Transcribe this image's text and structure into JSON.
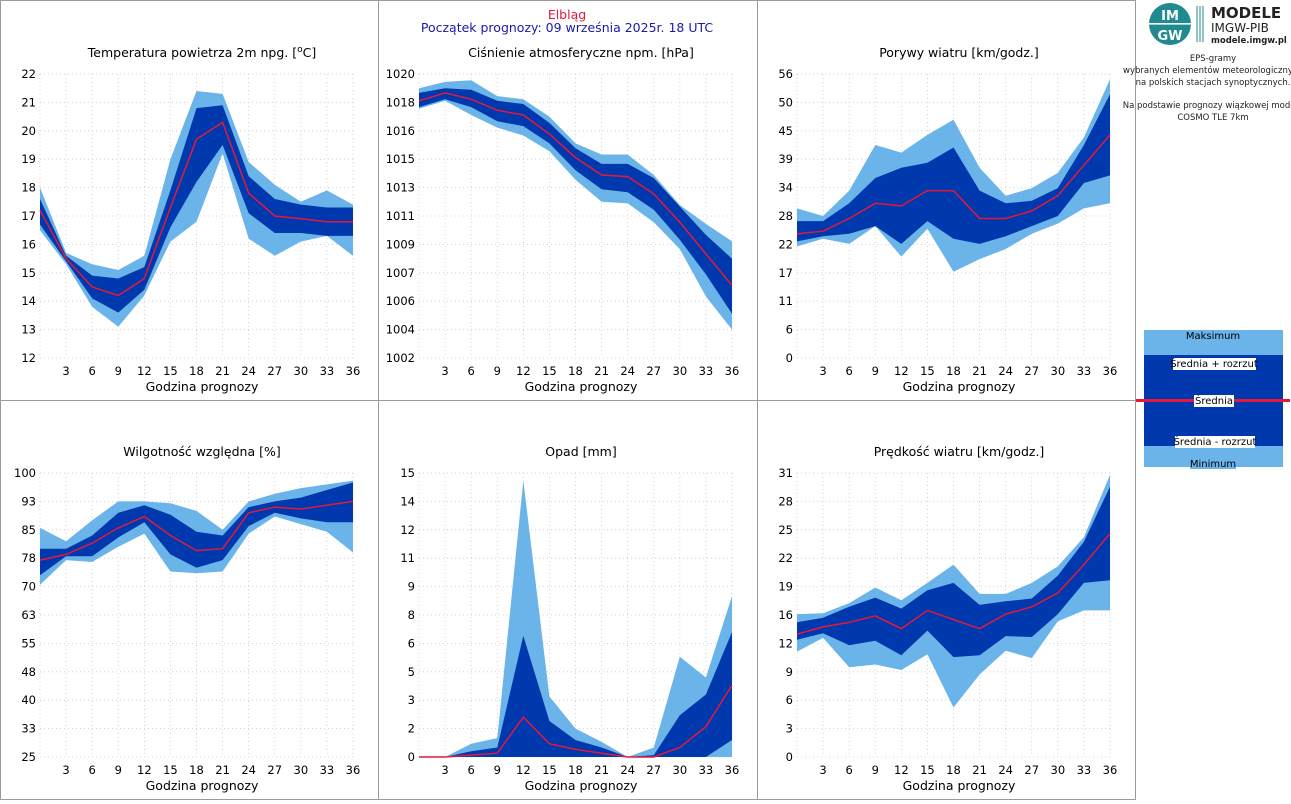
{
  "header": {
    "station": "Elbląg",
    "forecast_start": "Początek prognozy: 09 września 2025r. 18 UTC"
  },
  "logo": {
    "mark_top": "IM",
    "mark_bottom": "GW",
    "line1": "MODELE",
    "line2": "IMGW-PIB",
    "line3": "modele.imgw.pl"
  },
  "side_text": [
    "EPS-gramy",
    "wybranych elementów meteorologicznych",
    "na polskich stacjach  synoptycznych.",
    "",
    "Na podstawie prognozy wiązkowej modelu",
    "COSMO TLE 7km"
  ],
  "legend": {
    "max": "Maksimum",
    "mean_plus": "Średnia + rozrzut",
    "mean": "Średnia",
    "mean_minus": "Średnia - rozrzut",
    "min": "Minimum"
  },
  "colors": {
    "outer_band": "#6bb4ea",
    "inner_band": "#0039ad",
    "mean_line": "#e3183c",
    "grid": "#c8c8c8",
    "title_station": "#e3183c",
    "title_start": "#1a1aaa"
  },
  "chart_data": [
    {
      "id": "temperature",
      "type": "area",
      "title_main": "Temperatura powietrza 2m npg. [",
      "title_sup": "o",
      "title_end": "C]",
      "xlabel": "Godzina prognozy",
      "x": [
        0,
        3,
        6,
        9,
        12,
        15,
        18,
        21,
        24,
        27,
        30,
        33,
        36
      ],
      "xlim": [
        0,
        36
      ],
      "xticks": [
        "3",
        "6",
        "9",
        "12",
        "15",
        "18",
        "21",
        "24",
        "27",
        "30",
        "33",
        "36"
      ],
      "ylim": [
        12,
        22
      ],
      "yticks": [
        "12",
        "13",
        "14",
        "15",
        "16",
        "17",
        "18",
        "19",
        "20",
        "21",
        "22"
      ],
      "max": [
        18.0,
        15.7,
        15.3,
        15.1,
        15.6,
        19.0,
        21.4,
        21.3,
        18.9,
        18.1,
        17.5,
        17.9,
        17.4
      ],
      "mean_plus": [
        17.6,
        15.6,
        14.9,
        14.8,
        15.2,
        17.9,
        20.8,
        20.9,
        18.4,
        17.6,
        17.4,
        17.3,
        17.3
      ],
      "mean": [
        17.2,
        15.5,
        14.5,
        14.2,
        14.8,
        17.3,
        19.7,
        20.3,
        17.8,
        17.0,
        16.9,
        16.8,
        16.8
      ],
      "mean_minus": [
        16.7,
        15.4,
        14.1,
        13.6,
        14.4,
        16.6,
        18.2,
        19.5,
        17.1,
        16.4,
        16.4,
        16.3,
        16.3
      ],
      "min": [
        16.5,
        15.3,
        13.8,
        13.1,
        14.2,
        16.1,
        16.8,
        19.2,
        16.2,
        15.6,
        16.1,
        16.3,
        15.6
      ]
    },
    {
      "id": "pressure",
      "type": "area",
      "title_main": "Ciśnienie atmosferyczne npm. [hPa]",
      "xlabel": "Godzina prognozy",
      "x": [
        0,
        3,
        6,
        9,
        12,
        15,
        18,
        21,
        24,
        27,
        30,
        33,
        36
      ],
      "xlim": [
        0,
        36
      ],
      "xticks": [
        "3",
        "6",
        "9",
        "12",
        "15",
        "18",
        "21",
        "24",
        "27",
        "30",
        "33",
        "36"
      ],
      "ylim": [
        1002,
        1020
      ],
      "yticks": [
        "1002",
        "1004",
        "1006",
        "1007",
        "1009",
        "1011",
        "1013",
        "1015",
        "1016",
        "1018",
        "1020"
      ],
      "max": [
        1019.1,
        1019.5,
        1019.6,
        1018.6,
        1018.4,
        1017.3,
        1015.6,
        1014.9,
        1014.9,
        1013.6,
        1011.7,
        1010.5,
        1009.4
      ],
      "mean_plus": [
        1018.8,
        1019.1,
        1019.0,
        1018.3,
        1018.1,
        1016.9,
        1015.3,
        1014.3,
        1014.3,
        1013.4,
        1011.6,
        1009.8,
        1008.3
      ],
      "mean": [
        1018.3,
        1018.8,
        1018.4,
        1017.7,
        1017.4,
        1016.2,
        1014.7,
        1013.6,
        1013.5,
        1012.4,
        1010.6,
        1008.6,
        1006.6
      ],
      "mean_minus": [
        1017.9,
        1018.4,
        1017.9,
        1017.0,
        1016.7,
        1015.6,
        1013.9,
        1012.7,
        1012.5,
        1011.4,
        1009.5,
        1007.3,
        1004.8
      ],
      "min": [
        1017.8,
        1018.3,
        1017.4,
        1016.6,
        1016.1,
        1015.1,
        1013.3,
        1011.9,
        1011.8,
        1010.6,
        1008.9,
        1005.9,
        1003.8
      ]
    },
    {
      "id": "gusts",
      "type": "area",
      "title_main": "Porywy wiatru [km/godz.]",
      "xlabel": "Godzina prognozy",
      "x": [
        0,
        3,
        6,
        9,
        12,
        15,
        18,
        21,
        24,
        27,
        30,
        33,
        36
      ],
      "xlim": [
        0,
        36
      ],
      "xticks": [
        "3",
        "6",
        "9",
        "12",
        "15",
        "18",
        "21",
        "24",
        "27",
        "30",
        "33",
        "36"
      ],
      "ylim": [
        0,
        56
      ],
      "yticks": [
        "0",
        "6",
        "11",
        "17",
        "22",
        "28",
        "34",
        "39",
        "45",
        "50",
        "56"
      ],
      "max": [
        29.5,
        28.0,
        33.0,
        42.0,
        40.5,
        44.0,
        47.0,
        37.5,
        32.0,
        33.5,
        36.5,
        43.5,
        55.0
      ],
      "mean_plus": [
        27.0,
        27.0,
        30.5,
        35.5,
        37.5,
        38.5,
        41.5,
        33.0,
        30.5,
        31.0,
        33.5,
        42.0,
        52.0
      ],
      "mean": [
        24.5,
        25.0,
        27.5,
        30.5,
        30.0,
        33.0,
        33.0,
        27.5,
        27.5,
        29.0,
        32.0,
        38.0,
        44.0
      ],
      "mean_minus": [
        23.0,
        24.0,
        24.5,
        26.0,
        22.5,
        27.0,
        23.5,
        22.5,
        24.0,
        26.0,
        28.0,
        34.5,
        36.0
      ],
      "min": [
        22.0,
        23.5,
        22.5,
        26.0,
        20.0,
        25.5,
        17.0,
        19.5,
        21.5,
        24.5,
        26.5,
        29.5,
        30.5
      ]
    },
    {
      "id": "humidity",
      "type": "area",
      "title_main": "Wilgotność względna [%]",
      "xlabel": "Godzina prognozy",
      "x": [
        0,
        3,
        6,
        9,
        12,
        15,
        18,
        21,
        24,
        27,
        30,
        33,
        36
      ],
      "xlim": [
        0,
        36
      ],
      "xticks": [
        "3",
        "6",
        "9",
        "12",
        "15",
        "18",
        "21",
        "24",
        "27",
        "30",
        "33",
        "36"
      ],
      "ylim": [
        25,
        100
      ],
      "yticks": [
        "25",
        "33",
        "40",
        "48",
        "55",
        "63",
        "70",
        "78",
        "85",
        "93",
        "100"
      ],
      "max": [
        85.5,
        82.0,
        87.5,
        92.5,
        92.5,
        92.0,
        90.0,
        85.0,
        92.5,
        94.5,
        96.0,
        97.0,
        98.0
      ],
      "mean_plus": [
        80.0,
        80.0,
        83.5,
        89.5,
        91.5,
        89.0,
        84.5,
        83.5,
        91.0,
        92.5,
        93.5,
        95.5,
        97.5
      ],
      "mean": [
        77.0,
        78.5,
        81.5,
        85.5,
        88.5,
        83.5,
        79.5,
        80.0,
        89.5,
        91.0,
        90.5,
        91.5,
        92.5
      ],
      "mean_minus": [
        73.0,
        78.0,
        78.0,
        83.0,
        87.0,
        78.5,
        75.0,
        77.0,
        86.0,
        89.5,
        88.0,
        87.0,
        87.0
      ],
      "min": [
        70.5,
        77.0,
        76.5,
        80.5,
        84.0,
        74.0,
        73.5,
        74.0,
        84.0,
        88.5,
        86.5,
        84.5,
        79.0
      ]
    },
    {
      "id": "precipitation",
      "type": "area",
      "title_main": "Opad [mm]",
      "xlabel": "Godzina prognozy",
      "x": [
        0,
        3,
        6,
        9,
        12,
        15,
        18,
        21,
        24,
        27,
        30,
        33,
        36
      ],
      "xlim": [
        0,
        36
      ],
      "xticks": [
        "3",
        "6",
        "9",
        "12",
        "15",
        "18",
        "21",
        "24",
        "27",
        "30",
        "33",
        "36"
      ],
      "ylim": [
        0,
        15
      ],
      "yticks": [
        "0",
        "2",
        "3",
        "5",
        "6",
        "8",
        "9",
        "11",
        "12",
        "14",
        "15"
      ],
      "max": [
        0.0,
        0.0,
        0.7,
        1.0,
        14.6,
        3.2,
        1.5,
        0.8,
        0.0,
        0.5,
        5.3,
        4.2,
        8.5
      ],
      "mean_plus": [
        0.0,
        0.0,
        0.3,
        0.5,
        6.4,
        1.9,
        0.9,
        0.5,
        0.0,
        0.1,
        2.2,
        3.3,
        6.6
      ],
      "mean": [
        0.0,
        0.0,
        0.1,
        0.2,
        2.1,
        0.7,
        0.4,
        0.2,
        0.0,
        0.0,
        0.5,
        1.6,
        3.8
      ],
      "mean_minus": [
        0.0,
        0.0,
        0.0,
        0.0,
        0.0,
        0.0,
        0.0,
        0.0,
        0.0,
        0.0,
        0.0,
        0.0,
        0.9
      ],
      "min": [
        0.0,
        0.0,
        0.0,
        0.0,
        0.0,
        0.0,
        0.0,
        0.0,
        0.0,
        0.0,
        0.0,
        0.0,
        0.0
      ]
    },
    {
      "id": "wind_speed",
      "type": "area",
      "title_main": "Prędkość wiatru [km/godz.]",
      "xlabel": "Godzina prognozy",
      "x": [
        0,
        3,
        6,
        9,
        12,
        15,
        18,
        21,
        24,
        27,
        30,
        33,
        36
      ],
      "xlim": [
        0,
        36
      ],
      "xticks": [
        "3",
        "6",
        "9",
        "12",
        "15",
        "18",
        "21",
        "24",
        "27",
        "30",
        "33",
        "36"
      ],
      "ylim": [
        0,
        31
      ],
      "yticks": [
        "0",
        "3",
        "6",
        "9",
        "12",
        "16",
        "19",
        "22",
        "25",
        "28",
        "31"
      ],
      "max": [
        15.6,
        15.7,
        16.8,
        18.5,
        17.1,
        19.0,
        21.0,
        17.8,
        17.8,
        19.0,
        20.8,
        24.0,
        30.8
      ],
      "mean_plus": [
        14.7,
        15.2,
        16.4,
        17.4,
        16.2,
        18.2,
        19.0,
        16.6,
        17.0,
        17.3,
        19.8,
        23.5,
        29.5
      ],
      "mean": [
        13.4,
        14.2,
        14.7,
        15.4,
        14.0,
        16.0,
        15.0,
        14.0,
        15.6,
        16.4,
        17.9,
        21.0,
        24.4
      ],
      "mean_minus": [
        12.8,
        13.5,
        12.2,
        12.7,
        11.1,
        13.8,
        10.9,
        11.1,
        13.2,
        13.1,
        15.6,
        19.0,
        19.3
      ],
      "min": [
        11.5,
        13.0,
        9.8,
        10.1,
        9.5,
        11.2,
        5.4,
        9.0,
        11.6,
        10.8,
        14.8,
        16.0,
        16.0
      ]
    }
  ]
}
